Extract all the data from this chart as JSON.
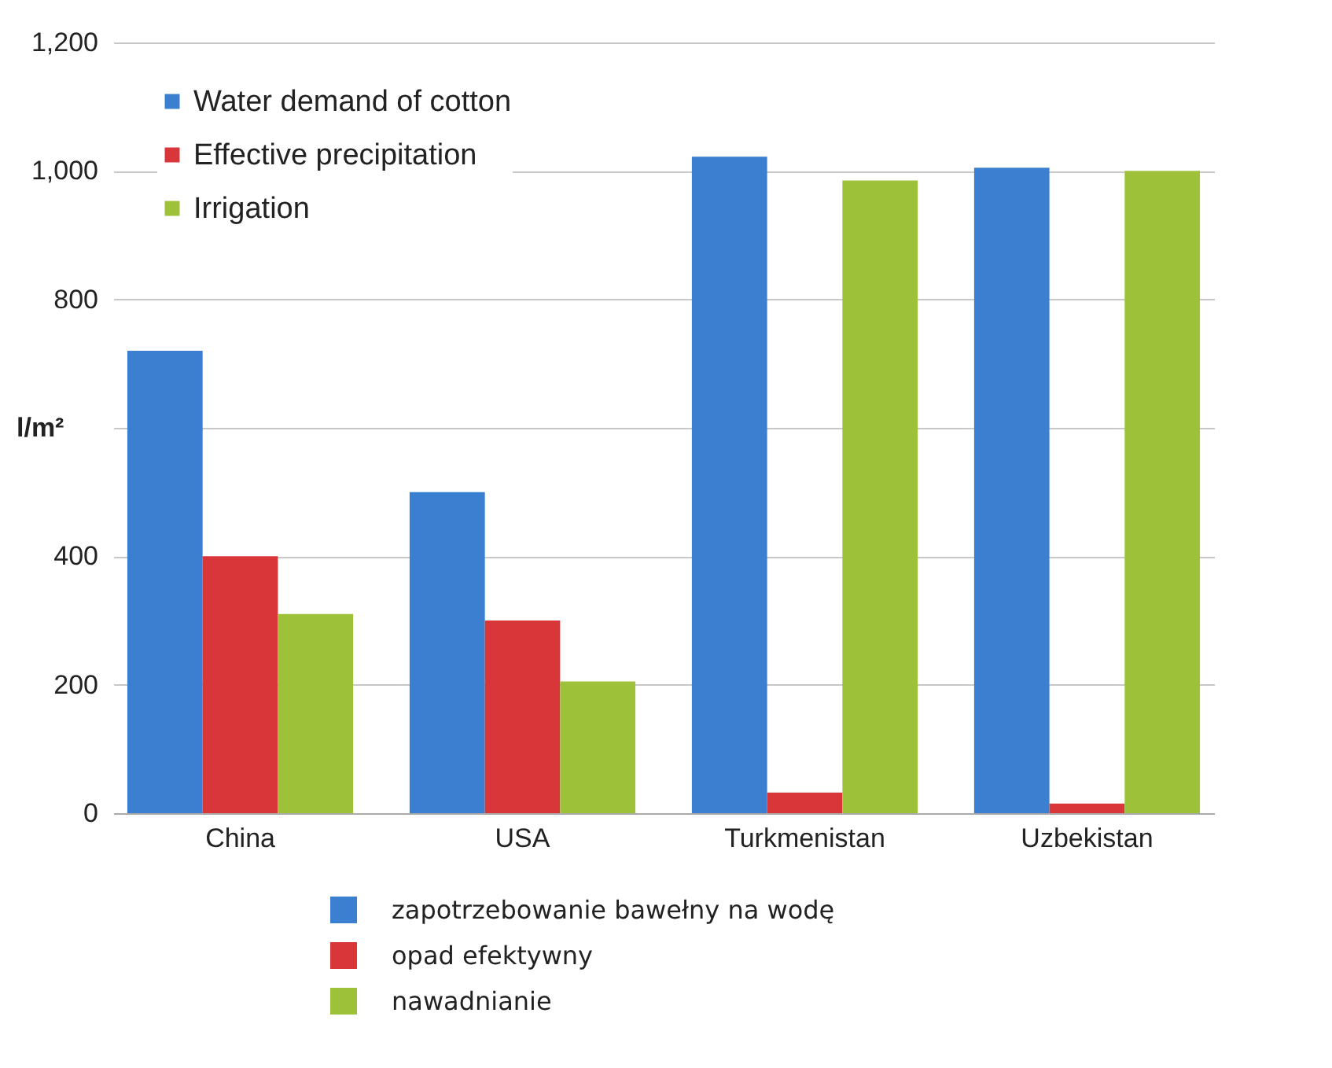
{
  "chart_data": {
    "type": "bar",
    "ylabel": "l/m²",
    "categories": [
      "China",
      "USA",
      "Turkmenistan",
      "Uzbekistan"
    ],
    "series": [
      {
        "name": "Water demand of cotton",
        "color": "#3a7fd0",
        "values": [
          720,
          500,
          1022,
          1005
        ]
      },
      {
        "name": "Effective precipitation",
        "color": "#d9363a",
        "values": [
          400,
          300,
          32,
          15
        ]
      },
      {
        "name": "Irrigation",
        "color": "#9dc23a",
        "values": [
          310,
          205,
          985,
          1000
        ]
      }
    ],
    "ylim": [
      0,
      1200
    ],
    "yticks": [
      {
        "value": 0,
        "label": "0"
      },
      {
        "value": 200,
        "label": "200"
      },
      {
        "value": 400,
        "label": "400"
      },
      {
        "value": 600,
        "label": null
      },
      {
        "value": 800,
        "label": "800"
      },
      {
        "value": 1000,
        "label": "1,000"
      },
      {
        "value": 1200,
        "label": "1,200"
      }
    ],
    "grid": "y",
    "legend": "top left",
    "annotations": [
      "zapotrzebowanie bawełny na wodę",
      "opad efektywny",
      "nawadnianie"
    ]
  }
}
